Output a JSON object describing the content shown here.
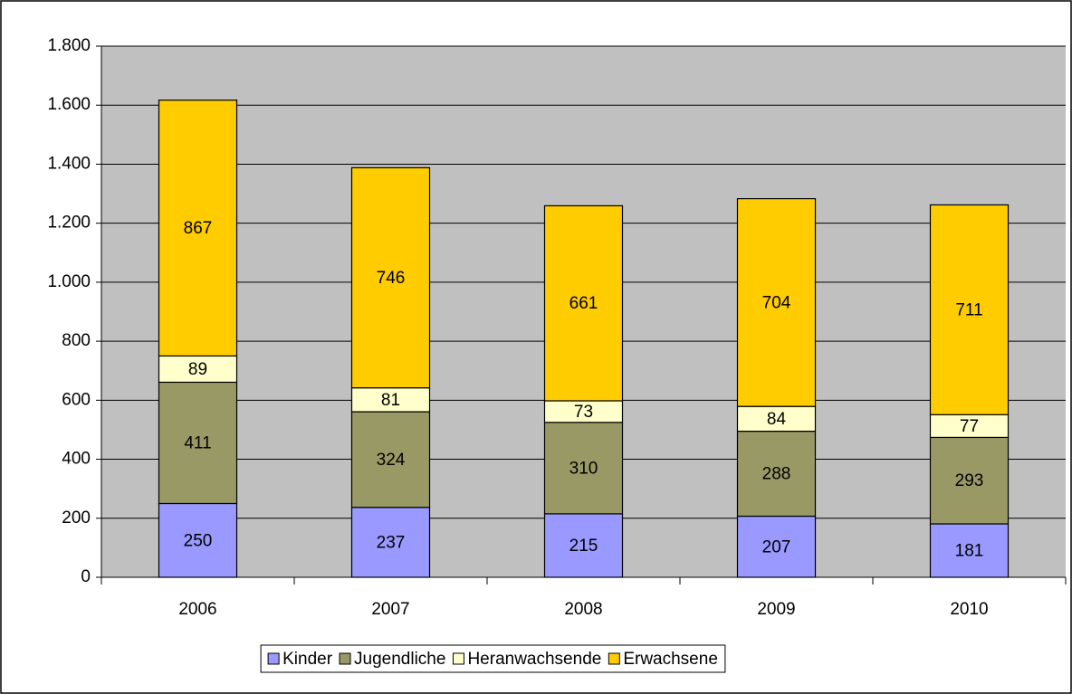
{
  "chart_data": {
    "type": "stacked_bar",
    "categories": [
      "2006",
      "2007",
      "2008",
      "2009",
      "2010"
    ],
    "series": [
      {
        "name": "Kinder",
        "color": "#9999ff",
        "values": [
          250,
          237,
          215,
          207,
          181
        ]
      },
      {
        "name": "Jugendliche",
        "color": "#999966",
        "values": [
          411,
          324,
          310,
          288,
          293
        ]
      },
      {
        "name": "Heranwachsende",
        "color": "#ffffcc",
        "values": [
          89,
          81,
          73,
          84,
          77
        ]
      },
      {
        "name": "Erwachsene",
        "color": "#ffcc00",
        "values": [
          867,
          746,
          661,
          704,
          711
        ]
      }
    ],
    "ylim": [
      0,
      1800
    ],
    "yticks": [
      0,
      200,
      400,
      600,
      800,
      {
        "value": 1000,
        "label": "1.000"
      },
      {
        "value": 1200,
        "label": "1.200"
      },
      {
        "value": 1400,
        "label": "1.400"
      },
      {
        "value": 1600,
        "label": "1.600"
      },
      {
        "value": 1800,
        "label": "1.800"
      }
    ],
    "grid": true,
    "plot_background": "#c0c0c0",
    "legend": "bottom"
  }
}
